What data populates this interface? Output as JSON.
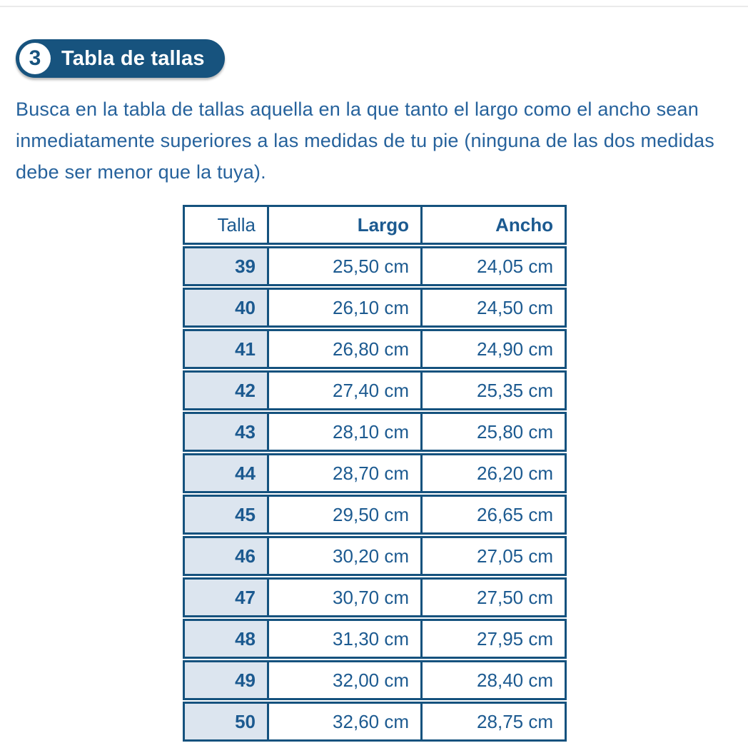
{
  "colors": {
    "accent": "#17537E",
    "border": "#15527E",
    "table_text": "#1C5A90",
    "para_text": "#26629C",
    "cell_bg": "#DCE5EF",
    "rule": "#EAEAEA"
  },
  "section": {
    "badge_number": "3",
    "badge_label": "Tabla de tallas",
    "intro": "Busca en la tabla de tallas aquella en la que tanto el largo como el ancho sean inmediatamente superiores a las medidas de tu pie (ninguna de las dos medidas debe ser menor que la tuya)."
  },
  "table": {
    "headers": [
      "Talla",
      "Largo",
      "Ancho"
    ],
    "rows": [
      [
        "39",
        "25,50 cm",
        "24,05 cm"
      ],
      [
        "40",
        "26,10 cm",
        "24,50 cm"
      ],
      [
        "41",
        "26,80 cm",
        "24,90 cm"
      ],
      [
        "42",
        "27,40 cm",
        "25,35 cm"
      ],
      [
        "43",
        "28,10 cm",
        "25,80 cm"
      ],
      [
        "44",
        "28,70 cm",
        "26,20 cm"
      ],
      [
        "45",
        "29,50 cm",
        "26,65 cm"
      ],
      [
        "46",
        "30,20 cm",
        "27,05 cm"
      ],
      [
        "47",
        "30,70 cm",
        "27,50 cm"
      ],
      [
        "48",
        "31,30 cm",
        "27,95 cm"
      ],
      [
        "49",
        "32,00 cm",
        "28,40 cm"
      ],
      [
        "50",
        "32,60 cm",
        "28,75 cm"
      ]
    ]
  }
}
